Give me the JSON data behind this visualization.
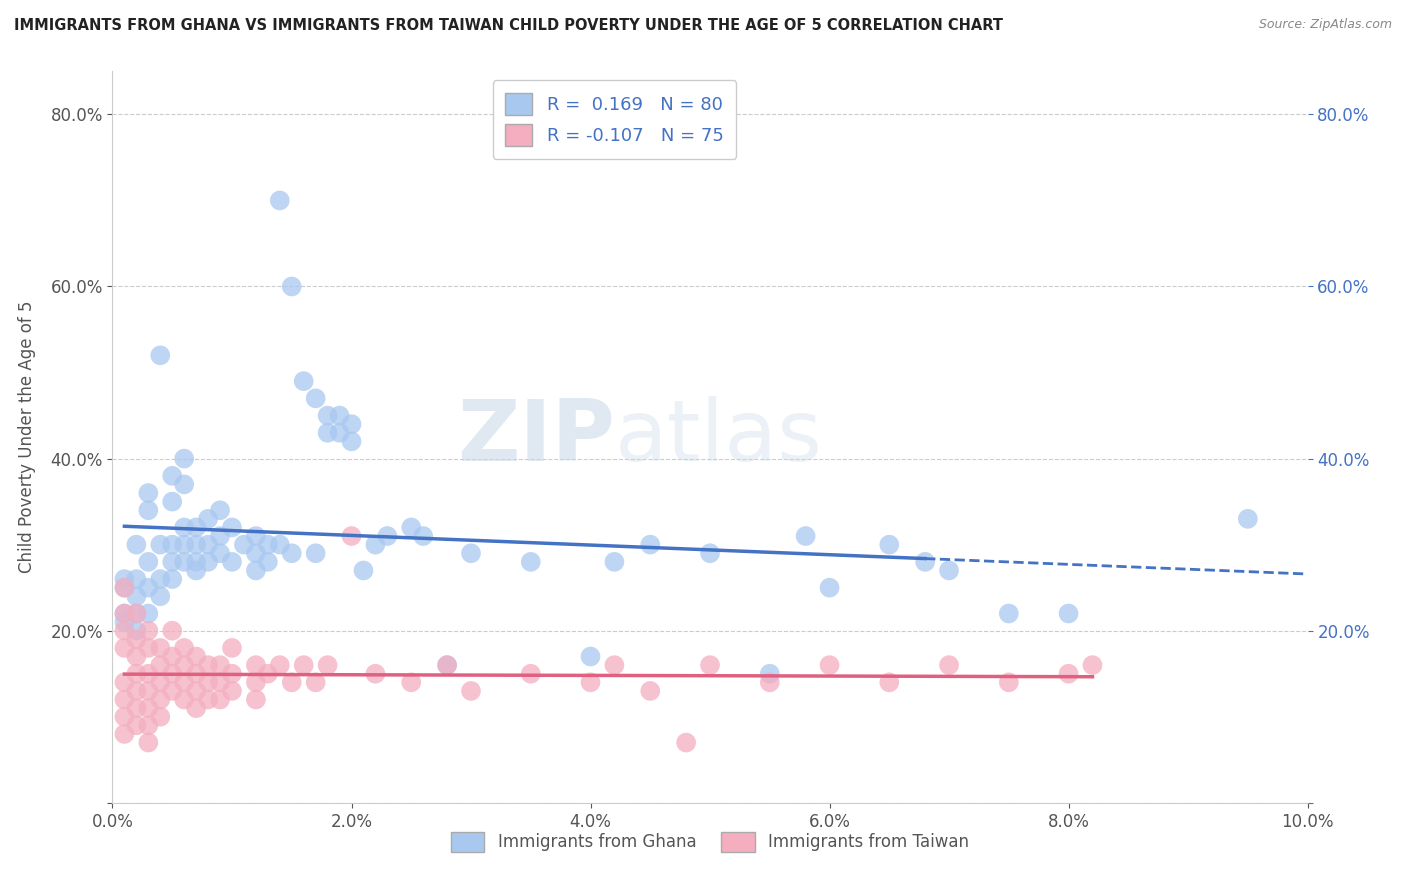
{
  "title": "IMMIGRANTS FROM GHANA VS IMMIGRANTS FROM TAIWAN CHILD POVERTY UNDER THE AGE OF 5 CORRELATION CHART",
  "source": "Source: ZipAtlas.com",
  "ylabel": "Child Poverty Under the Age of 5",
  "ghana_R": 0.169,
  "ghana_N": 80,
  "taiwan_R": -0.107,
  "taiwan_N": 75,
  "ghana_color": "#a8c8f0",
  "taiwan_color": "#f4aec0",
  "ghana_line_color": "#4472c4",
  "taiwan_line_color": "#e06080",
  "ghana_scatter": [
    [
      0.001,
      0.25
    ],
    [
      0.001,
      0.22
    ],
    [
      0.001,
      0.26
    ],
    [
      0.001,
      0.21
    ],
    [
      0.002,
      0.3
    ],
    [
      0.002,
      0.26
    ],
    [
      0.002,
      0.24
    ],
    [
      0.002,
      0.22
    ],
    [
      0.002,
      0.2
    ],
    [
      0.003,
      0.28
    ],
    [
      0.003,
      0.25
    ],
    [
      0.003,
      0.22
    ],
    [
      0.003,
      0.34
    ],
    [
      0.003,
      0.36
    ],
    [
      0.004,
      0.52
    ],
    [
      0.004,
      0.3
    ],
    [
      0.004,
      0.26
    ],
    [
      0.004,
      0.24
    ],
    [
      0.005,
      0.38
    ],
    [
      0.005,
      0.35
    ],
    [
      0.005,
      0.3
    ],
    [
      0.005,
      0.28
    ],
    [
      0.005,
      0.26
    ],
    [
      0.006,
      0.4
    ],
    [
      0.006,
      0.37
    ],
    [
      0.006,
      0.32
    ],
    [
      0.006,
      0.3
    ],
    [
      0.006,
      0.28
    ],
    [
      0.007,
      0.32
    ],
    [
      0.007,
      0.3
    ],
    [
      0.007,
      0.28
    ],
    [
      0.007,
      0.27
    ],
    [
      0.008,
      0.33
    ],
    [
      0.008,
      0.3
    ],
    [
      0.008,
      0.28
    ],
    [
      0.009,
      0.34
    ],
    [
      0.009,
      0.31
    ],
    [
      0.009,
      0.29
    ],
    [
      0.01,
      0.32
    ],
    [
      0.01,
      0.28
    ],
    [
      0.011,
      0.3
    ],
    [
      0.012,
      0.31
    ],
    [
      0.012,
      0.29
    ],
    [
      0.012,
      0.27
    ],
    [
      0.013,
      0.3
    ],
    [
      0.013,
      0.28
    ],
    [
      0.014,
      0.7
    ],
    [
      0.014,
      0.3
    ],
    [
      0.015,
      0.6
    ],
    [
      0.015,
      0.29
    ],
    [
      0.016,
      0.49
    ],
    [
      0.017,
      0.47
    ],
    [
      0.017,
      0.29
    ],
    [
      0.018,
      0.45
    ],
    [
      0.018,
      0.43
    ],
    [
      0.019,
      0.45
    ],
    [
      0.019,
      0.43
    ],
    [
      0.02,
      0.44
    ],
    [
      0.02,
      0.42
    ],
    [
      0.021,
      0.27
    ],
    [
      0.022,
      0.3
    ],
    [
      0.023,
      0.31
    ],
    [
      0.025,
      0.32
    ],
    [
      0.026,
      0.31
    ],
    [
      0.028,
      0.16
    ],
    [
      0.03,
      0.29
    ],
    [
      0.035,
      0.28
    ],
    [
      0.04,
      0.17
    ],
    [
      0.042,
      0.28
    ],
    [
      0.045,
      0.3
    ],
    [
      0.05,
      0.29
    ],
    [
      0.055,
      0.15
    ],
    [
      0.058,
      0.31
    ],
    [
      0.06,
      0.25
    ],
    [
      0.065,
      0.3
    ],
    [
      0.068,
      0.28
    ],
    [
      0.07,
      0.27
    ],
    [
      0.075,
      0.22
    ],
    [
      0.08,
      0.22
    ],
    [
      0.095,
      0.33
    ]
  ],
  "taiwan_scatter": [
    [
      0.001,
      0.25
    ],
    [
      0.001,
      0.22
    ],
    [
      0.001,
      0.2
    ],
    [
      0.001,
      0.18
    ],
    [
      0.001,
      0.14
    ],
    [
      0.001,
      0.12
    ],
    [
      0.001,
      0.1
    ],
    [
      0.001,
      0.08
    ],
    [
      0.002,
      0.22
    ],
    [
      0.002,
      0.19
    ],
    [
      0.002,
      0.17
    ],
    [
      0.002,
      0.15
    ],
    [
      0.002,
      0.13
    ],
    [
      0.002,
      0.11
    ],
    [
      0.002,
      0.09
    ],
    [
      0.003,
      0.2
    ],
    [
      0.003,
      0.18
    ],
    [
      0.003,
      0.15
    ],
    [
      0.003,
      0.13
    ],
    [
      0.003,
      0.11
    ],
    [
      0.003,
      0.09
    ],
    [
      0.003,
      0.07
    ],
    [
      0.004,
      0.18
    ],
    [
      0.004,
      0.16
    ],
    [
      0.004,
      0.14
    ],
    [
      0.004,
      0.12
    ],
    [
      0.004,
      0.1
    ],
    [
      0.005,
      0.2
    ],
    [
      0.005,
      0.17
    ],
    [
      0.005,
      0.15
    ],
    [
      0.005,
      0.13
    ],
    [
      0.006,
      0.18
    ],
    [
      0.006,
      0.16
    ],
    [
      0.006,
      0.14
    ],
    [
      0.006,
      0.12
    ],
    [
      0.007,
      0.17
    ],
    [
      0.007,
      0.15
    ],
    [
      0.007,
      0.13
    ],
    [
      0.007,
      0.11
    ],
    [
      0.008,
      0.16
    ],
    [
      0.008,
      0.14
    ],
    [
      0.008,
      0.12
    ],
    [
      0.009,
      0.16
    ],
    [
      0.009,
      0.14
    ],
    [
      0.009,
      0.12
    ],
    [
      0.01,
      0.18
    ],
    [
      0.01,
      0.15
    ],
    [
      0.01,
      0.13
    ],
    [
      0.012,
      0.16
    ],
    [
      0.012,
      0.14
    ],
    [
      0.012,
      0.12
    ],
    [
      0.013,
      0.15
    ],
    [
      0.014,
      0.16
    ],
    [
      0.015,
      0.14
    ],
    [
      0.016,
      0.16
    ],
    [
      0.017,
      0.14
    ],
    [
      0.018,
      0.16
    ],
    [
      0.02,
      0.31
    ],
    [
      0.022,
      0.15
    ],
    [
      0.025,
      0.14
    ],
    [
      0.028,
      0.16
    ],
    [
      0.03,
      0.13
    ],
    [
      0.035,
      0.15
    ],
    [
      0.04,
      0.14
    ],
    [
      0.042,
      0.16
    ],
    [
      0.045,
      0.13
    ],
    [
      0.048,
      0.07
    ],
    [
      0.05,
      0.16
    ],
    [
      0.055,
      0.14
    ],
    [
      0.06,
      0.16
    ],
    [
      0.065,
      0.14
    ],
    [
      0.07,
      0.16
    ],
    [
      0.075,
      0.14
    ],
    [
      0.08,
      0.15
    ],
    [
      0.082,
      0.16
    ]
  ],
  "xlim": [
    0.0,
    0.1
  ],
  "ylim": [
    0.0,
    0.85
  ],
  "xticks": [
    0.0,
    0.02,
    0.04,
    0.06,
    0.08,
    0.1
  ],
  "yticks": [
    0.0,
    0.2,
    0.4,
    0.6,
    0.8
  ],
  "xticklabels": [
    "0.0%",
    "2.0%",
    "4.0%",
    "6.0%",
    "8.0%",
    "10.0%"
  ],
  "ytick_left_labels": [
    "",
    "20.0%",
    "40.0%",
    "60.0%",
    "80.0%"
  ],
  "ytick_right_labels": [
    "",
    "20.0%",
    "40.0%",
    "60.0%",
    "80.0%"
  ],
  "watermark_zip": "ZIP",
  "watermark_atlas": "atlas",
  "background_color": "#ffffff",
  "grid_color": "#cccccc"
}
